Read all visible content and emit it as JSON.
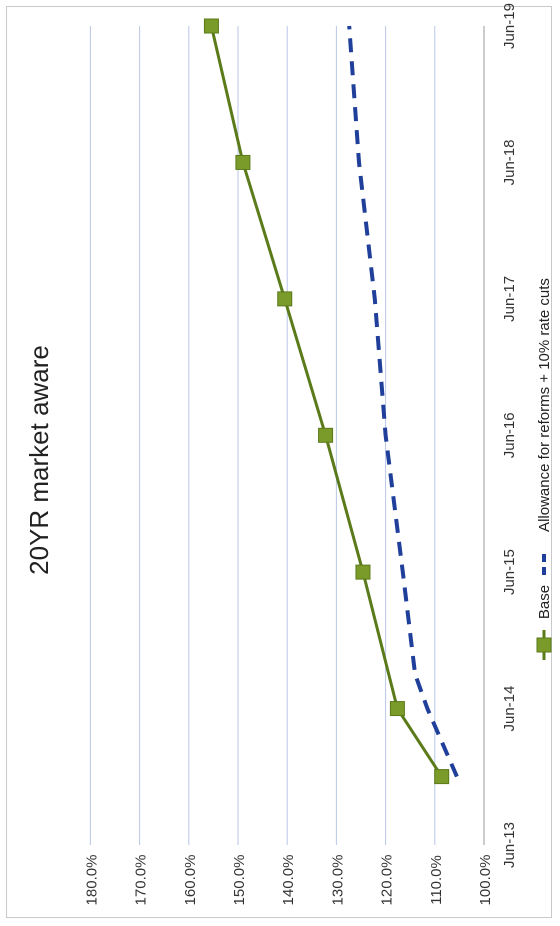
{
  "chart_data": {
    "type": "line",
    "title": "20YR market aware",
    "xlabel": "",
    "ylabel": "",
    "x_ticks": [
      "Jun-13",
      "Jun-14",
      "Jun-15",
      "Jun-16",
      "Jun-17",
      "Jun-18",
      "Jun-19"
    ],
    "y_ticks": [
      "100.0%",
      "110.0%",
      "120.0%",
      "130.0%",
      "140.0%",
      "150.0%",
      "160.0%",
      "170.0%",
      "180.0%"
    ],
    "ylim": [
      100,
      180
    ],
    "xlim": [
      "2013-06",
      "2019-06"
    ],
    "grid": "horizontal",
    "legend_position": "bottom",
    "orientation_note": "rotated 90 degrees counter-clockwise",
    "series": [
      {
        "name": "Base",
        "color": "#5b7a1a",
        "marker": "square",
        "line_style": "solid",
        "points": [
          {
            "x": "2013-12",
            "y": 108.6
          },
          {
            "x": "2014-06",
            "y": 117.6
          },
          {
            "x": "2015-06",
            "y": 124.6
          },
          {
            "x": "2016-06",
            "y": 132.2
          },
          {
            "x": "2017-06",
            "y": 140.5
          },
          {
            "x": "2018-06",
            "y": 149.0
          },
          {
            "x": "2019-06",
            "y": 155.4
          }
        ]
      },
      {
        "name": "Allowance for reforms + 10% rate cuts",
        "color": "#1f3f9a",
        "marker": "none",
        "line_style": "dashed",
        "points": [
          {
            "x": "2013-12",
            "y": 105.5
          },
          {
            "x": "2014-06",
            "y": 111.5
          },
          {
            "x": "2014-09",
            "y": 114.0
          },
          {
            "x": "2015-06",
            "y": 116.5
          },
          {
            "x": "2016-06",
            "y": 120.0
          },
          {
            "x": "2017-06",
            "y": 122.2
          },
          {
            "x": "2018-06",
            "y": 125.4
          },
          {
            "x": "2019-06",
            "y": 127.4
          }
        ]
      }
    ]
  }
}
